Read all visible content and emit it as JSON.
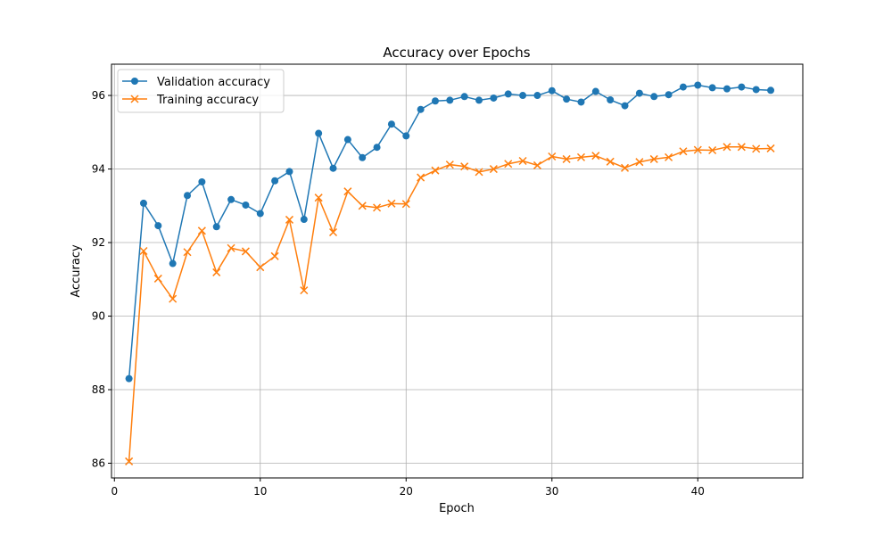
{
  "chart_data": {
    "type": "line",
    "title": "Accuracy over Epochs",
    "xlabel": "Epoch",
    "ylabel": "Accuracy",
    "xlim": [
      -0.2,
      47.2
    ],
    "ylim": [
      85.6,
      96.85
    ],
    "xticks": [
      0,
      10,
      20,
      30,
      40
    ],
    "yticks": [
      86,
      88,
      90,
      92,
      94,
      96
    ],
    "grid": true,
    "legend_position": "top-left",
    "x": [
      1,
      2,
      3,
      4,
      5,
      6,
      7,
      8,
      9,
      10,
      11,
      12,
      13,
      14,
      15,
      16,
      17,
      18,
      19,
      20,
      21,
      22,
      23,
      24,
      25,
      26,
      27,
      28,
      29,
      30,
      31,
      32,
      33,
      34,
      35,
      36,
      37,
      38,
      39,
      40,
      41,
      42,
      43,
      44,
      45
    ],
    "series": [
      {
        "name": "Validation accuracy",
        "color": "#1f77b4",
        "marker": "circle",
        "values": [
          88.3,
          93.07,
          92.46,
          91.43,
          93.28,
          93.65,
          92.43,
          93.17,
          93.02,
          92.79,
          93.68,
          93.93,
          92.63,
          94.97,
          94.02,
          94.8,
          94.31,
          94.59,
          95.22,
          94.9,
          95.62,
          95.85,
          95.87,
          95.97,
          95.87,
          95.93,
          96.04,
          96.0,
          96.0,
          96.13,
          95.9,
          95.82,
          96.11,
          95.88,
          95.72,
          96.06,
          95.97,
          96.02,
          96.23,
          96.28,
          96.21,
          96.18,
          96.23,
          96.16,
          96.14
        ]
      },
      {
        "name": "Training accuracy",
        "color": "#ff7f0e",
        "marker": "x",
        "values": [
          86.05,
          91.77,
          91.02,
          90.47,
          91.74,
          92.32,
          91.19,
          91.85,
          91.76,
          91.33,
          91.63,
          92.62,
          90.7,
          93.22,
          92.28,
          93.39,
          93.0,
          92.95,
          93.06,
          93.05,
          93.77,
          93.96,
          94.12,
          94.07,
          93.92,
          94.0,
          94.14,
          94.22,
          94.1,
          94.34,
          94.27,
          94.32,
          94.36,
          94.2,
          94.03,
          94.19,
          94.27,
          94.32,
          94.48,
          94.52,
          94.51,
          94.6,
          94.6,
          94.55,
          94.56
        ]
      }
    ]
  }
}
